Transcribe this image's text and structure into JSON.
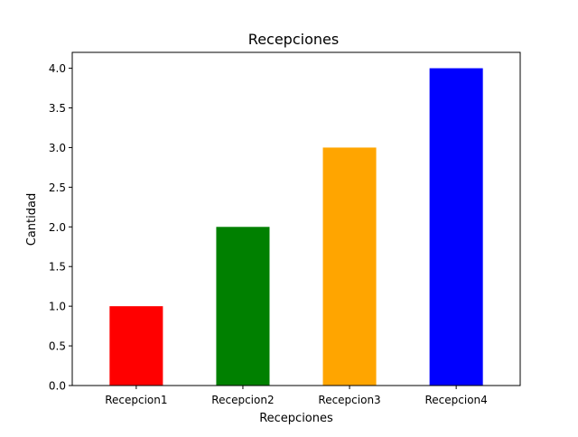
{
  "chart_data": {
    "type": "bar",
    "title": "Recepciones",
    "xlabel": "Recepciones",
    "ylabel": "Cantidad",
    "categories": [
      "Recepcion1",
      "Recepcion2",
      "Recepcion3",
      "Recepcion4"
    ],
    "values": [
      1.0,
      2.0,
      3.0,
      4.0
    ],
    "colors": [
      "#ff0000",
      "#008000",
      "#ffa500",
      "#0000ff"
    ],
    "ylim": [
      0,
      4.2
    ],
    "yticks": [
      "0.0",
      "0.5",
      "1.0",
      "1.5",
      "2.0",
      "2.5",
      "3.0",
      "3.5",
      "4.0"
    ],
    "grid": false,
    "legend": "none"
  }
}
